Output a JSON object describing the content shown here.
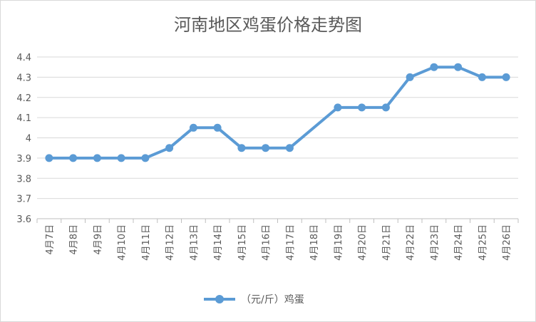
{
  "chart_data": {
    "type": "line",
    "title": "河南地区鸡蛋价格走势图",
    "xlabel": "",
    "ylabel": "",
    "categories": [
      "4月7日",
      "4月8日",
      "4月9日",
      "4月10日",
      "4月11日",
      "4月12日",
      "4月13日",
      "4月14日",
      "4月15日",
      "4月16日",
      "4月17日",
      "4月18日",
      "4月19日",
      "4月20日",
      "4月21日",
      "4月22日",
      "4月23日",
      "4月24日",
      "4月25日",
      "4月26日"
    ],
    "series": [
      {
        "name": "（元/斤）鸡蛋",
        "values": [
          3.9,
          3.9,
          3.9,
          3.9,
          3.9,
          3.95,
          4.05,
          4.05,
          3.95,
          3.95,
          3.95,
          null,
          4.15,
          4.15,
          4.15,
          4.3,
          4.35,
          4.35,
          4.3,
          4.3
        ],
        "color": "#5b9bd5"
      }
    ],
    "ylim": [
      3.6,
      4.4
    ],
    "yticks": [
      "3.6",
      "3.7",
      "3.8",
      "3.9",
      "4",
      "4.1",
      "4.2",
      "4.3",
      "4.4"
    ],
    "grid": true,
    "legend": "bottom"
  }
}
